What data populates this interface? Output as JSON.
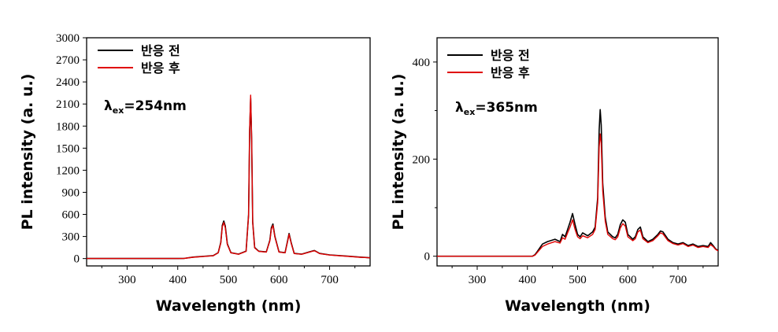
{
  "chart_data": [
    {
      "type": "line",
      "title": "",
      "xlabel": "Wavelength (nm)",
      "ylabel": "PL intensity (a. u.)",
      "xlim": [
        220,
        780
      ],
      "ylim": [
        -100,
        3000
      ],
      "xticks": [
        "300",
        "400",
        "500",
        "600",
        "700"
      ],
      "yticks": [
        "0",
        "300",
        "600",
        "900",
        "1200",
        "1500",
        "1800",
        "2100",
        "2400",
        "2700",
        "3000"
      ],
      "yticks_shown": true,
      "legend_position": "top-left",
      "annotation": {
        "symbol": "λ",
        "sub": "ex",
        "text": "=254nm"
      },
      "series": [
        {
          "name": "반응 전",
          "color": "#000000",
          "x": [
            220,
            400,
            412,
            430,
            470,
            480,
            485,
            488,
            491,
            494,
            498,
            505,
            520,
            535,
            540,
            542,
            544,
            546,
            548,
            552,
            560,
            575,
            582,
            585,
            588,
            592,
            600,
            612,
            617,
            620,
            624,
            630,
            645,
            660,
            665,
            670,
            675,
            680,
            700,
            740,
            760,
            770,
            780
          ],
          "y": [
            0,
            0,
            2,
            20,
            40,
            80,
            220,
            450,
            510,
            440,
            200,
            80,
            60,
            100,
            600,
            1700,
            2180,
            1600,
            500,
            150,
            100,
            90,
            250,
            420,
            470,
            300,
            90,
            80,
            240,
            340,
            220,
            70,
            60,
            90,
            100,
            110,
            90,
            70,
            50,
            30,
            20,
            15,
            10
          ]
        },
        {
          "name": "반응 후",
          "color": "#e00000",
          "x": [
            220,
            400,
            412,
            430,
            470,
            480,
            485,
            488,
            491,
            494,
            498,
            505,
            520,
            535,
            540,
            542,
            544,
            546,
            548,
            552,
            560,
            575,
            582,
            585,
            588,
            592,
            600,
            612,
            617,
            620,
            624,
            630,
            645,
            660,
            665,
            670,
            675,
            680,
            700,
            740,
            760,
            770,
            780
          ],
          "y": [
            0,
            0,
            2,
            18,
            38,
            78,
            210,
            430,
            490,
            420,
            190,
            78,
            58,
            98,
            590,
            1750,
            2220,
            1620,
            490,
            145,
            98,
            88,
            240,
            400,
            450,
            290,
            88,
            78,
            230,
            330,
            210,
            68,
            58,
            88,
            98,
            105,
            88,
            68,
            48,
            28,
            18,
            14,
            10
          ]
        }
      ]
    },
    {
      "type": "line",
      "title": "",
      "xlabel": "Wavelength (nm)",
      "ylabel": "PL intensity (a. u.)",
      "xlim": [
        220,
        780
      ],
      "ylim": [
        -20,
        450
      ],
      "xticks": [
        "300",
        "400",
        "500",
        "600",
        "700"
      ],
      "yticks": [
        "0",
        "200",
        "400"
      ],
      "legend_position": "top-left",
      "annotation": {
        "symbol": "λ",
        "sub": "ex",
        "text": "=365nm"
      },
      "series": [
        {
          "name": "반응 전",
          "color": "#000000",
          "x": [
            220,
            410,
            415,
            420,
            430,
            440,
            455,
            465,
            470,
            475,
            480,
            485,
            490,
            495,
            500,
            505,
            510,
            520,
            530,
            535,
            540,
            543,
            545,
            547,
            550,
            555,
            560,
            570,
            575,
            580,
            585,
            590,
            595,
            600,
            610,
            615,
            620,
            625,
            630,
            640,
            650,
            660,
            665,
            670,
            680,
            690,
            700,
            710,
            720,
            730,
            740,
            750,
            760,
            765,
            770,
            775,
            780
          ],
          "y": [
            0,
            0,
            3,
            10,
            25,
            30,
            35,
            30,
            45,
            40,
            55,
            70,
            88,
            65,
            45,
            40,
            48,
            42,
            50,
            60,
            120,
            260,
            302,
            270,
            150,
            80,
            50,
            40,
            38,
            45,
            65,
            75,
            70,
            45,
            35,
            40,
            55,
            60,
            40,
            30,
            35,
            45,
            52,
            50,
            35,
            28,
            25,
            28,
            22,
            25,
            20,
            22,
            20,
            28,
            22,
            15,
            12
          ]
        },
        {
          "name": "반응 후",
          "color": "#e00000",
          "x": [
            220,
            410,
            415,
            420,
            430,
            440,
            455,
            465,
            470,
            475,
            480,
            485,
            490,
            495,
            500,
            505,
            510,
            520,
            530,
            535,
            540,
            543,
            545,
            547,
            550,
            555,
            560,
            570,
            575,
            580,
            585,
            590,
            595,
            600,
            610,
            615,
            620,
            625,
            630,
            640,
            650,
            660,
            665,
            670,
            680,
            690,
            700,
            710,
            720,
            730,
            740,
            750,
            760,
            765,
            770,
            775,
            780
          ],
          "y": [
            0,
            0,
            2,
            8,
            20,
            25,
            30,
            27,
            38,
            35,
            48,
            60,
            75,
            55,
            40,
            36,
            42,
            38,
            45,
            55,
            110,
            225,
            252,
            232,
            135,
            72,
            45,
            36,
            34,
            40,
            58,
            67,
            62,
            40,
            32,
            36,
            50,
            54,
            36,
            28,
            32,
            42,
            48,
            46,
            32,
            26,
            23,
            26,
            20,
            23,
            18,
            20,
            18,
            24,
            20,
            14,
            11
          ]
        }
      ]
    }
  ]
}
